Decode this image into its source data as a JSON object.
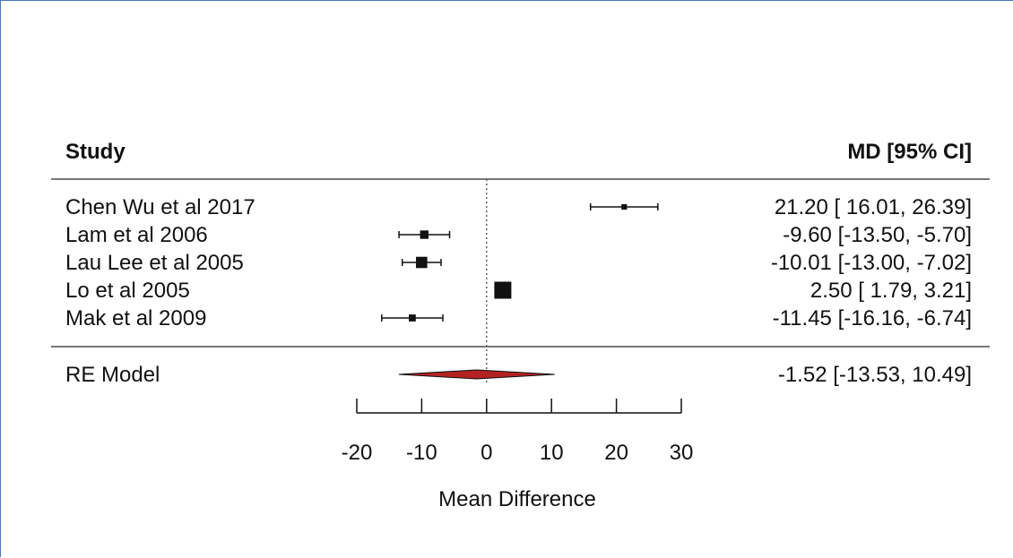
{
  "chart_data": {
    "type": "forest",
    "header_left": "Study",
    "header_right": "MD [95% CI]",
    "studies": [
      {
        "name": "Chen Wu et al 2017",
        "md": 21.2,
        "lo": 16.01,
        "hi": 26.39,
        "text": "21.20 [ 16.01, 26.39]",
        "weight": 1
      },
      {
        "name": "Lam et al 2006",
        "md": -9.6,
        "lo": -13.5,
        "hi": -5.7,
        "text": "-9.60 [-13.50, -5.70]",
        "weight": 2
      },
      {
        "name": "Lau  Lee et al 2005",
        "md": -10.01,
        "lo": -13.0,
        "hi": -7.02,
        "text": "-10.01 [-13.00, -7.02]",
        "weight": 3
      },
      {
        "name": "Lo et al 2005",
        "md": 2.5,
        "lo": 1.79,
        "hi": 3.21,
        "text": "2.50 [  1.79,  3.21]",
        "weight": 5
      },
      {
        "name": "Mak et al 2009",
        "md": -11.45,
        "lo": -16.16,
        "hi": -6.74,
        "text": "-11.45 [-16.16, -6.74]",
        "weight": 1.5
      }
    ],
    "summary": {
      "name": "RE Model",
      "md": -1.52,
      "lo": -13.53,
      "hi": 10.49,
      "text": "-1.52 [-13.53, 10.49]"
    },
    "xticks": [
      "-20",
      "-10",
      "0",
      "10",
      "20",
      "30"
    ],
    "xtick_values": [
      -20,
      -10,
      0,
      10,
      20,
      30
    ],
    "xlabel": "Mean Difference",
    "xlim": [
      -20,
      30
    ],
    "reference_line": 0,
    "colors": {
      "summary_fill": "#b22222",
      "text": "#111111",
      "rule": "#777777"
    }
  }
}
